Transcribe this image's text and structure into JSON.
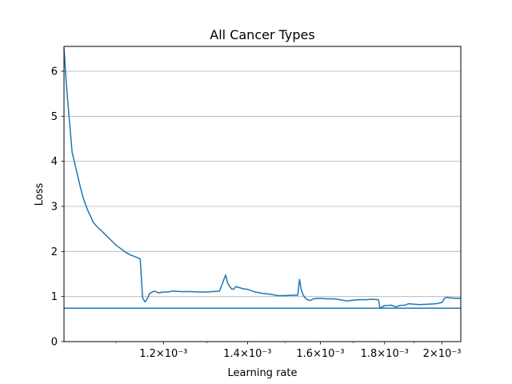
{
  "chart_data": {
    "type": "line",
    "title": "All Cancer Types",
    "xlabel": "Learning rate",
    "ylabel": "Loss",
    "x_scale": "log",
    "xlim": [
      0.001,
      0.00207
    ],
    "ylim": [
      0,
      6.55
    ],
    "grid": "horizontal",
    "x_ticks": [
      {
        "value": 0.0012,
        "label": "1.2×10⁻³"
      },
      {
        "value": 0.0014,
        "label": "1.4×10⁻³"
      },
      {
        "value": 0.0016,
        "label": "1.6×10⁻³"
      },
      {
        "value": 0.0018,
        "label": "1.8×10⁻³"
      },
      {
        "value": 0.002,
        "label": "2×10⁻³"
      }
    ],
    "y_ticks": [
      0,
      1,
      2,
      3,
      4,
      5,
      6
    ],
    "series": [
      {
        "color": "#1f77b4",
        "x": [
          0.001,
          0.001005,
          0.00101,
          0.001015,
          0.00102,
          0.001025,
          0.00103,
          0.001035,
          0.00104,
          0.001045,
          0.00105,
          0.001055,
          0.00106,
          0.001065,
          0.00107,
          0.00108,
          0.00109,
          0.0011,
          0.00111,
          0.00112,
          0.00113,
          0.00114,
          0.001147,
          0.00115,
          0.001155,
          0.00116,
          0.001165,
          0.00117,
          0.00118,
          0.00119,
          0.0012,
          0.00121,
          0.00122,
          0.00124,
          0.00126,
          0.00128,
          0.0013,
          0.00133,
          0.001345,
          0.00135,
          0.001355,
          0.00136,
          0.001365,
          0.00137,
          0.00139,
          0.0014,
          0.00142,
          0.00144,
          0.00146,
          0.00148,
          0.0015,
          0.00152,
          0.001535,
          0.00154,
          0.001545,
          0.00155,
          0.001555,
          0.00156,
          0.00157,
          0.00158,
          0.0016,
          0.00162,
          0.00164,
          0.00166,
          0.00168,
          0.0017,
          0.00172,
          0.00174,
          0.00176,
          0.00178,
          0.001785,
          0.00179,
          0.0018,
          0.00181,
          0.00182,
          0.00184,
          0.00185,
          0.00187,
          0.00188,
          0.0019,
          0.00192,
          0.00195,
          0.00198,
          0.002,
          0.00201,
          0.00202,
          0.00203,
          0.00205,
          0.00207
        ],
        "y": [
          6.5,
          5.6,
          4.9,
          4.2,
          3.95,
          3.7,
          3.45,
          3.22,
          3.05,
          2.9,
          2.78,
          2.65,
          2.58,
          2.52,
          2.47,
          2.36,
          2.25,
          2.14,
          2.06,
          1.98,
          1.92,
          1.88,
          1.85,
          1.83,
          0.97,
          0.88,
          0.95,
          1.07,
          1.12,
          1.08,
          1.1,
          1.1,
          1.12,
          1.11,
          1.11,
          1.1,
          1.1,
          1.12,
          1.48,
          1.3,
          1.22,
          1.17,
          1.16,
          1.22,
          1.17,
          1.16,
          1.1,
          1.07,
          1.05,
          1.02,
          1.02,
          1.03,
          1.03,
          1.38,
          1.15,
          1.04,
          0.98,
          0.94,
          0.91,
          0.95,
          0.96,
          0.95,
          0.95,
          0.93,
          0.9,
          0.92,
          0.93,
          0.93,
          0.94,
          0.93,
          0.74,
          0.76,
          0.8,
          0.8,
          0.81,
          0.77,
          0.8,
          0.81,
          0.84,
          0.83,
          0.82,
          0.83,
          0.84,
          0.87,
          0.97,
          0.98,
          0.97,
          0.96,
          0.96
        ]
      }
    ],
    "hline": {
      "y": 0.74,
      "color": "#1f77b4"
    }
  }
}
